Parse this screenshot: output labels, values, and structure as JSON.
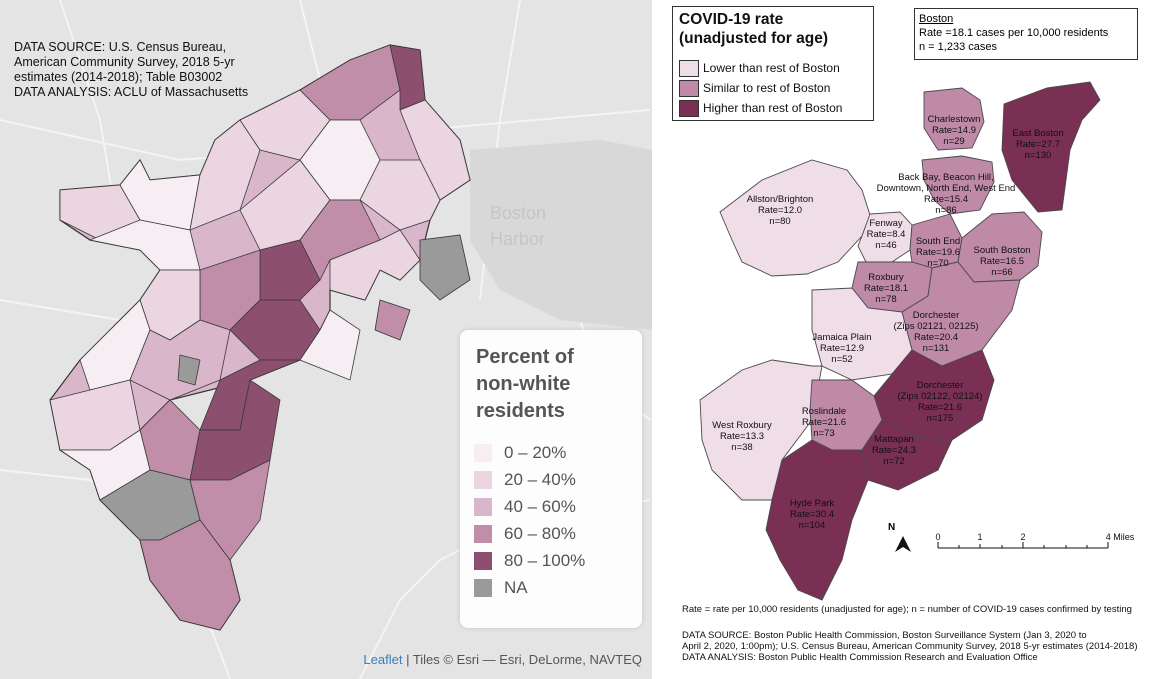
{
  "left_map": {
    "source_lines": [
      "DATA SOURCE: U.S. Census Bureau,",
      "American Community Survey, 2018 5-yr",
      "estimates (2014-2018); Table B03002",
      "DATA ANALYSIS: ACLU of Massachusetts"
    ],
    "water_label": [
      "Boston",
      "Harbor"
    ],
    "legend": {
      "title_lines": [
        "Percent of",
        "non-white",
        "residents"
      ],
      "items": [
        {
          "label": "0 – 20%",
          "color": "#f6eef3"
        },
        {
          "label": "20 – 40%",
          "color": "#ead5e1"
        },
        {
          "label": "40 – 60%",
          "color": "#d9b6ca"
        },
        {
          "label": "60 – 80%",
          "color": "#c08ea9"
        },
        {
          "label": "80 – 100%",
          "color": "#8c4f70"
        },
        {
          "label": "NA",
          "color": "#9a9a9a"
        }
      ]
    },
    "attribution": {
      "link": "Leaflet",
      "rest": " | Tiles © Esri — Esri, DeLorme, NAVTEQ"
    }
  },
  "right_map": {
    "legend": {
      "title_lines": [
        "COVID-19 rate",
        "(unadjusted for age)"
      ],
      "items": [
        {
          "label": "Lower than rest of Boston",
          "color": "#efdde8"
        },
        {
          "label": "Similar to rest of Boston",
          "color": "#bf8aa8"
        },
        {
          "label": "Higher than rest of Boston",
          "color": "#7a2f54"
        }
      ]
    },
    "boston_summary": {
      "name": "Boston",
      "rate": "Rate =18.1 cases per 10,000 residents",
      "n": "n = 1,233 cases"
    },
    "neighborhoods": [
      {
        "lines": [
          "Charlestown",
          "Rate=14.9",
          "n=29"
        ]
      },
      {
        "lines": [
          "East Boston",
          "Rate=27.7",
          "n=130"
        ]
      },
      {
        "lines": [
          "Back Bay, Beacon Hill,",
          "Downtown, North End, West End",
          "Rate=15.4",
          "n=86"
        ]
      },
      {
        "lines": [
          "Allston/Brighton",
          "Rate=12.0",
          "n=80"
        ]
      },
      {
        "lines": [
          "Fenway",
          "Rate=8.4",
          "n=46"
        ]
      },
      {
        "lines": [
          "South End",
          "Rate=19.6",
          "n=70"
        ]
      },
      {
        "lines": [
          "South Boston",
          "Rate=16.5",
          "n=66"
        ]
      },
      {
        "lines": [
          "Roxbury",
          "Rate=18.1",
          "n=78"
        ]
      },
      {
        "lines": [
          "Dorchester",
          "(Zips 02121, 02125)",
          "Rate=20.4",
          "n=131"
        ]
      },
      {
        "lines": [
          "Jamaica Plain",
          "Rate=12.9",
          "n=52"
        ]
      },
      {
        "lines": [
          "Dorchester",
          "(Zips 02122, 02124)",
          "Rate=21.6",
          "n=175"
        ]
      },
      {
        "lines": [
          "Roslindale",
          "Rate=21.6",
          "n=73"
        ]
      },
      {
        "lines": [
          "West Roxbury",
          "Rate=13.3",
          "n=38"
        ]
      },
      {
        "lines": [
          "Mattapan",
          "Rate=24.3",
          "n=72"
        ]
      },
      {
        "lines": [
          "Hyde Park",
          "Rate=30.4",
          "n=104"
        ]
      }
    ],
    "north_label": "N",
    "scale_labels": [
      "0",
      "1",
      "2",
      "4 Miles"
    ],
    "note": "Rate = rate per 10,000 residents (unadjusted for age); n = number of COVID-19 cases confirmed by testing",
    "source_lines": [
      "DATA SOURCE: Boston Public Health Commission, Boston Surveillance System (Jan 3, 2020 to",
      "April 2, 2020, 1:00pm); U.S. Census Bureau, American Community Survey, 2018 5-yr estimates (2014-2018)",
      "DATA ANALYSIS: Boston Public Health Commission Research and Evaluation Office"
    ]
  }
}
